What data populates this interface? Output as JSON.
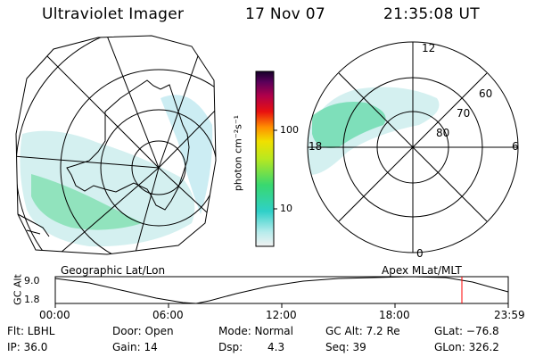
{
  "header": {
    "instrument": "Ultraviolet Imager",
    "date": "17 Nov 07",
    "time": "21:35:08 UT"
  },
  "panels": {
    "left_title": "Geographic Lat/Lon",
    "right_title": "Apex MLat/MLT"
  },
  "colorbar": {
    "unit_label": "photon cm⁻²s⁻¹",
    "ticks": [
      "100",
      "10"
    ],
    "scale": "log"
  },
  "polar_labels": {
    "mlt": [
      "12",
      "18",
      "6",
      "0"
    ],
    "mlat": [
      "60",
      "70",
      "80"
    ]
  },
  "altitude_plot": {
    "ylabel": "GC Alt",
    "yticks": [
      "9.0",
      "1.8"
    ],
    "xticks": [
      "00:00",
      "06:00",
      "12:00",
      "18:00",
      "23:59"
    ],
    "marker_time": "21:35",
    "marker_color": "#ff0000"
  },
  "status": {
    "flt": "Flt: LBHL",
    "ip": "IP: 36.0",
    "door": "Door: Open",
    "gain": "Gain: 14",
    "mode": "Mode: Normal",
    "dsp_label": "Dsp:",
    "dsp_value": "4.3",
    "gc_alt": "GC Alt: 7.2 Re",
    "seq": "Seq: 39",
    "glat": "GLat: −76.8",
    "glon": "GLon: 326.2"
  }
}
